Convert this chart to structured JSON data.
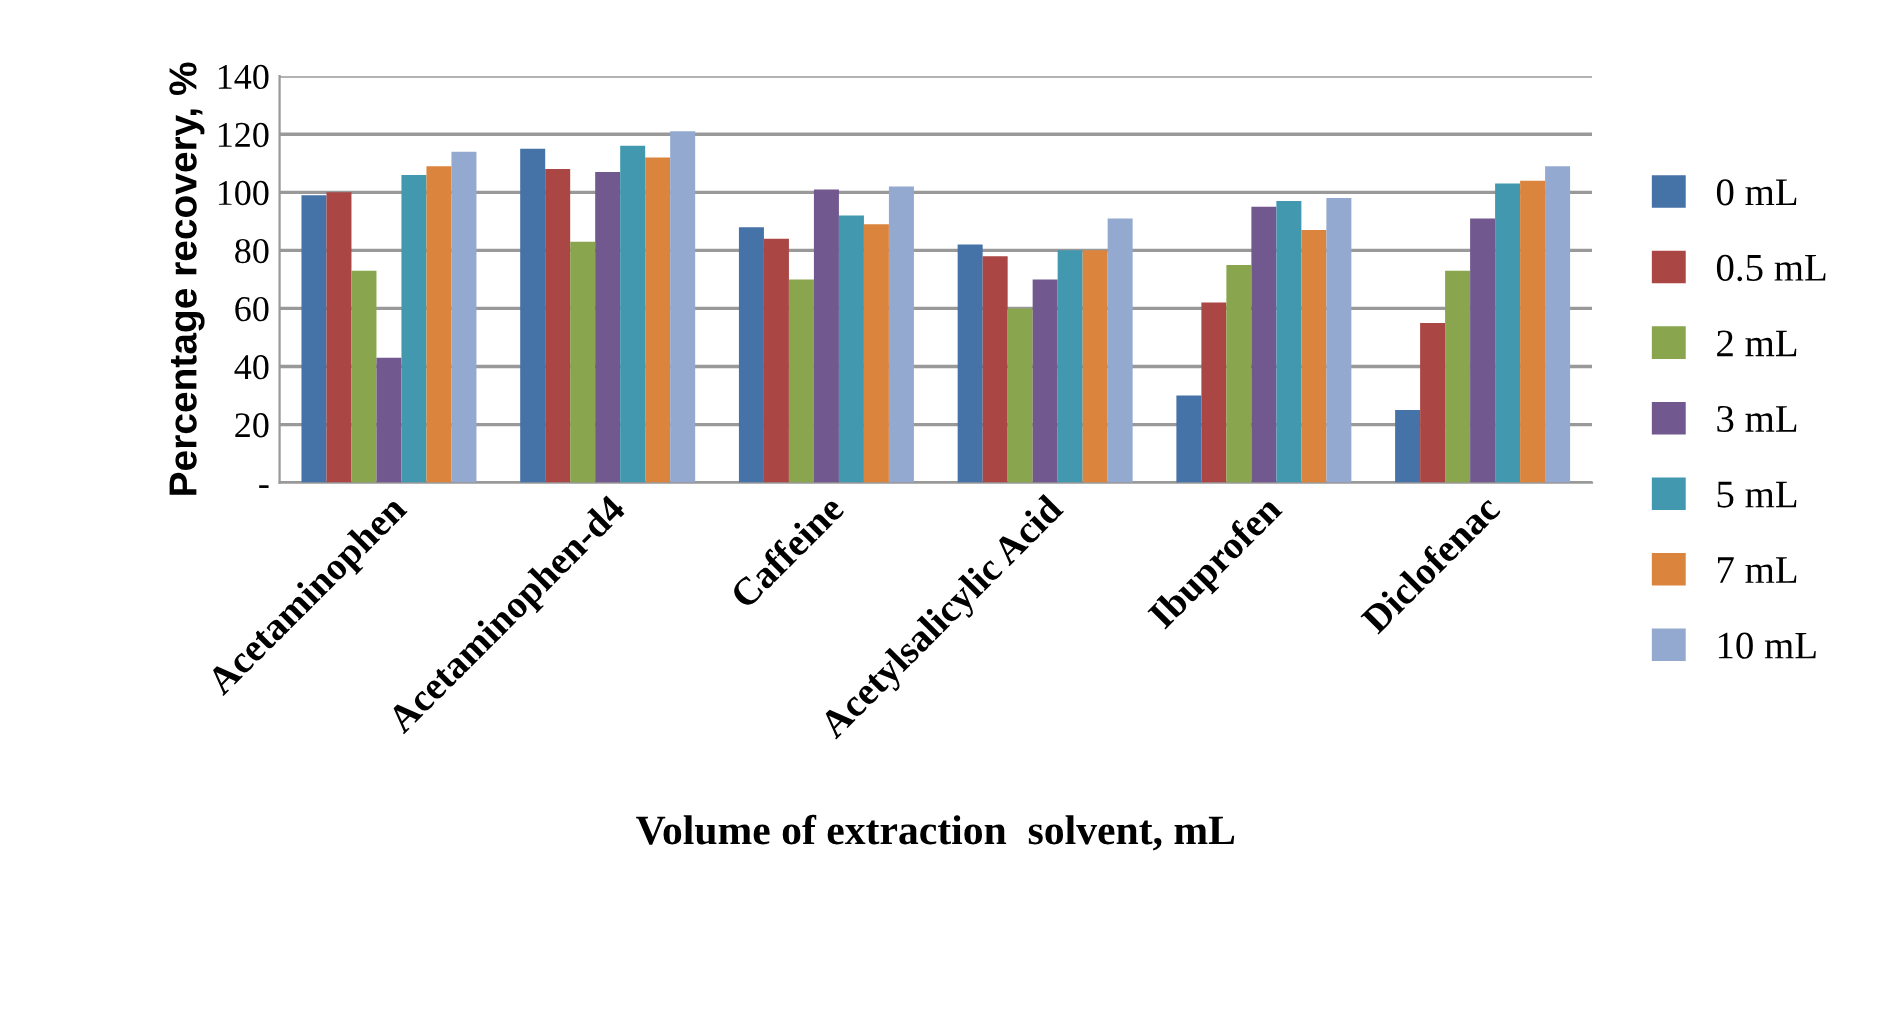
{
  "chart_data": {
    "type": "bar",
    "xlabel": "Volume of extraction  solvent, mL",
    "ylabel": "Percentage recovery, %",
    "categories": [
      "Acetaminophen",
      "Acetaminophen-d4",
      "Caffeine",
      "Acetylsalicylic Acid",
      "Ibuprofen",
      "Diclofenac"
    ],
    "series": [
      {
        "name": "0 mL",
        "color": "#4572a7",
        "values": [
          99,
          115,
          88,
          82,
          30,
          25
        ]
      },
      {
        "name": "0.5 mL",
        "color": "#aa4643",
        "values": [
          100,
          108,
          84,
          78,
          62,
          55
        ]
      },
      {
        "name": "2 mL",
        "color": "#89a54e",
        "values": [
          73,
          83,
          70,
          60,
          75,
          73
        ]
      },
      {
        "name": "3 mL",
        "color": "#71588f",
        "values": [
          43,
          107,
          101,
          70,
          95,
          91
        ]
      },
      {
        "name": "5 mL",
        "color": "#4198af",
        "values": [
          106,
          116,
          92,
          80,
          97,
          103
        ]
      },
      {
        "name": "7 mL",
        "color": "#db843d",
        "values": [
          109,
          112,
          89,
          80,
          87,
          104
        ]
      },
      {
        "name": "10 mL",
        "color": "#93a9cf",
        "values": [
          114,
          121,
          102,
          91,
          98,
          109
        ]
      }
    ],
    "ylim": [
      0,
      140
    ],
    "yticks": [
      {
        "value": 0,
        "label": "-"
      },
      20,
      40,
      60,
      80,
      100,
      120,
      140
    ],
    "grid": "y",
    "legend": "right"
  }
}
